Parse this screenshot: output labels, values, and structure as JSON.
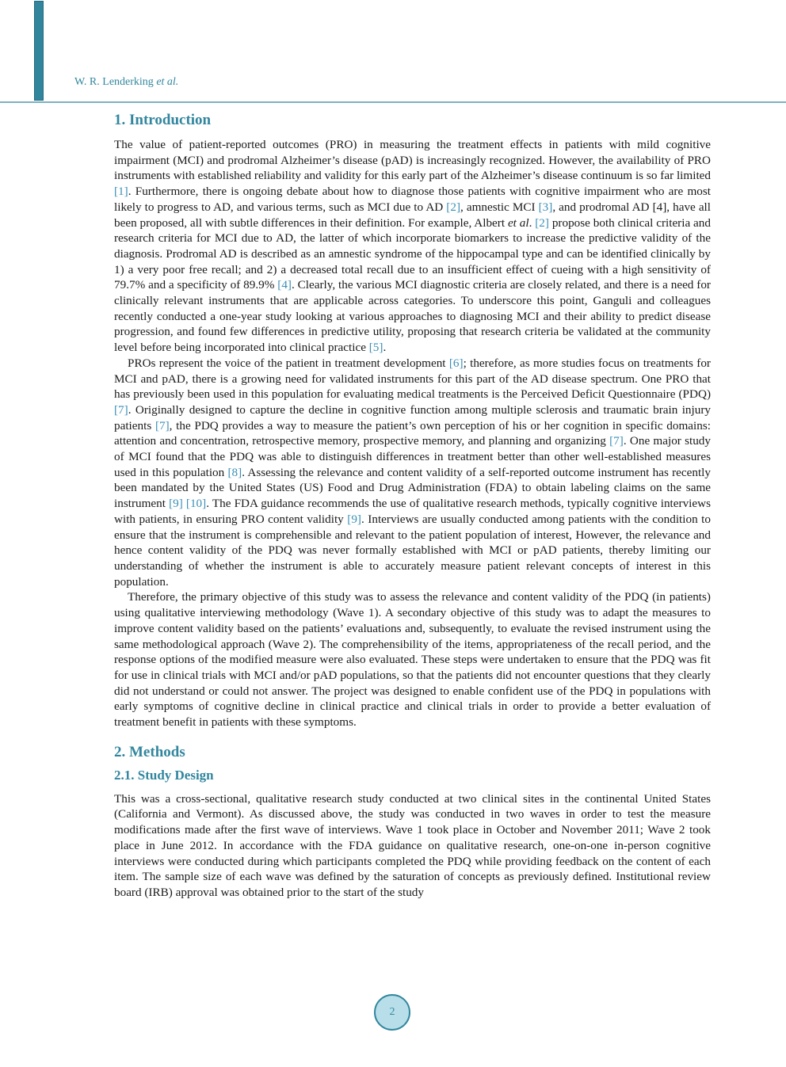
{
  "header": {
    "author": "W. R. Lenderking",
    "etal": "et al."
  },
  "accent_color": "#31869e",
  "sections": [
    {
      "type": "h2",
      "text": "1. Introduction",
      "cls": "h1"
    },
    {
      "type": "p",
      "ind": false,
      "segs": [
        {
          "t": "The value of patient-reported outcomes (PRO) in measuring the treatment effects in patients with mild cognitive impairment (MCI) and prodromal Alzheimer’s disease (pAD) is increasingly recognized. However, the availability of PRO instruments with established reliability and validity for this early part of the Alzheimer’s disease continuum is so far limited "
        },
        {
          "t": "[1]",
          "c": 1
        },
        {
          "t": ". Furthermore, there is ongoing debate about how to diagnose those patients with cognitive impairment who are most likely to progress to AD, and various terms, such as MCI due to AD "
        },
        {
          "t": "[2]",
          "c": 1
        },
        {
          "t": ", amnestic MCI "
        },
        {
          "t": "[3]",
          "c": 1
        },
        {
          "t": ", and prodromal AD [4], have all been proposed, all with subtle differences in their definition. For example, Albert "
        },
        {
          "t": "et al",
          "i": 1
        },
        {
          "t": ". "
        },
        {
          "t": "[2]",
          "c": 1
        },
        {
          "t": " propose both clinical criteria and research criteria for MCI due to AD, the latter of which incorporate biomarkers to increase the predictive validity of the diagnosis. Prodromal AD is described as an amnestic syndrome of the hippocampal type and can be identified clinically by 1) a very poor free recall; and 2) a decreased total recall due to an insufficient effect of cueing with a high sensitivity of 79.7% and a specificity of 89.9% "
        },
        {
          "t": "[4]",
          "c": 1
        },
        {
          "t": ". Clearly, the various MCI diagnostic criteria are closely related, and there is a need for clinically relevant instruments that are applicable across categories. To underscore this point, Ganguli and colleagues recently conducted a one-year study looking at various approaches to diagnosing MCI and their ability to predict disease progression, and found few differences in predictive utility, proposing that research criteria be validated at the community level before being incorporated into clinical practice "
        },
        {
          "t": "[5]",
          "c": 1
        },
        {
          "t": "."
        }
      ]
    },
    {
      "type": "p",
      "ind": true,
      "segs": [
        {
          "t": "PROs represent the voice of the patient in treatment development "
        },
        {
          "t": "[6]",
          "c": 1
        },
        {
          "t": "; therefore, as more studies focus on treatments for MCI and pAD, there is a growing need for validated instruments for this part of the AD disease spectrum. One PRO that has previously been used in this population for evaluating medical treatments is the Perceived Deficit Questionnaire (PDQ) "
        },
        {
          "t": "[7]",
          "c": 1
        },
        {
          "t": ". Originally designed to capture the decline in cognitive function among multiple sclerosis and traumatic brain injury patients "
        },
        {
          "t": "[7]",
          "c": 1
        },
        {
          "t": ", the PDQ provides a way to measure the patient’s own perception of his or her cognition in specific domains: attention and concentration, retrospective memory, prospective memory, and planning and organizing "
        },
        {
          "t": "[7]",
          "c": 1
        },
        {
          "t": ". One major study of MCI found that the PDQ was able to distinguish differences in treatment better than other well-established measures used in this population "
        },
        {
          "t": "[8]",
          "c": 1
        },
        {
          "t": ". Assessing the relevance and content validity of a self-reported outcome instrument has recently been mandated by the United States (US) Food and Drug Administration (FDA) to obtain labeling claims on the same instrument "
        },
        {
          "t": "[9]",
          "c": 1
        },
        {
          "t": " "
        },
        {
          "t": "[10]",
          "c": 1
        },
        {
          "t": ". The FDA guidance recommends the use of qualitative research methods, typically cognitive interviews with patients, in ensuring PRO content validity "
        },
        {
          "t": "[9]",
          "c": 1
        },
        {
          "t": ". Interviews are usually conducted among patients with the condition to ensure that the instrument is comprehensible and relevant to the patient population of interest, However, the relevance and hence content validity of the PDQ was never formally established with MCI or pAD patients, thereby limiting our understanding of whether the instrument is able to accurately measure patient relevant concepts of interest in this population."
        }
      ]
    },
    {
      "type": "p",
      "ind": true,
      "segs": [
        {
          "t": "Therefore, the primary objective of this study was to assess the relevance and content validity of the PDQ (in patients) using qualitative interviewing methodology (Wave 1). A secondary objective of this study was to adapt the measures to improve content validity based on the patients’ evaluations and, subsequently, to evaluate the revised instrument using the same methodological approach (Wave 2). The comprehensibility of the items, appropriateness of the recall period, and the response options of the modified measure were also evaluated. These steps were undertaken to ensure that the PDQ was fit for use in clinical trials with MCI and/or pAD populations, so that the patients did not encounter questions that they clearly did not understand or could not answer. The project was designed to enable confident use of the PDQ in populations with early symptoms of cognitive decline in clinical practice and clinical trials in order to provide a better evaluation of treatment benefit in patients with these symptoms."
        }
      ]
    },
    {
      "type": "h2",
      "text": "2. Methods",
      "cls": "h2m"
    },
    {
      "type": "h3",
      "text": "2.1. Study Design",
      "cls": "h3m"
    },
    {
      "type": "p",
      "ind": false,
      "segs": [
        {
          "t": "This was a cross-sectional, qualitative research study conducted at two clinical sites in the continental United States (California and Vermont). As discussed above, the study was conducted in two waves in order to test the measure modifications made after the first wave of interviews. Wave 1 took place in October and November 2011; Wave 2 took place in June 2012. In accordance with the FDA guidance on qualitative research, one-on-one in-person cognitive interviews were conducted during which participants completed the PDQ while providing feedback on the content of each item. The sample size of each wave was defined by the saturation of concepts as previously defined. Institutional review board (IRB) approval was obtained prior to the start of the study"
        }
      ]
    }
  ],
  "footer": {
    "page_number": "2"
  }
}
